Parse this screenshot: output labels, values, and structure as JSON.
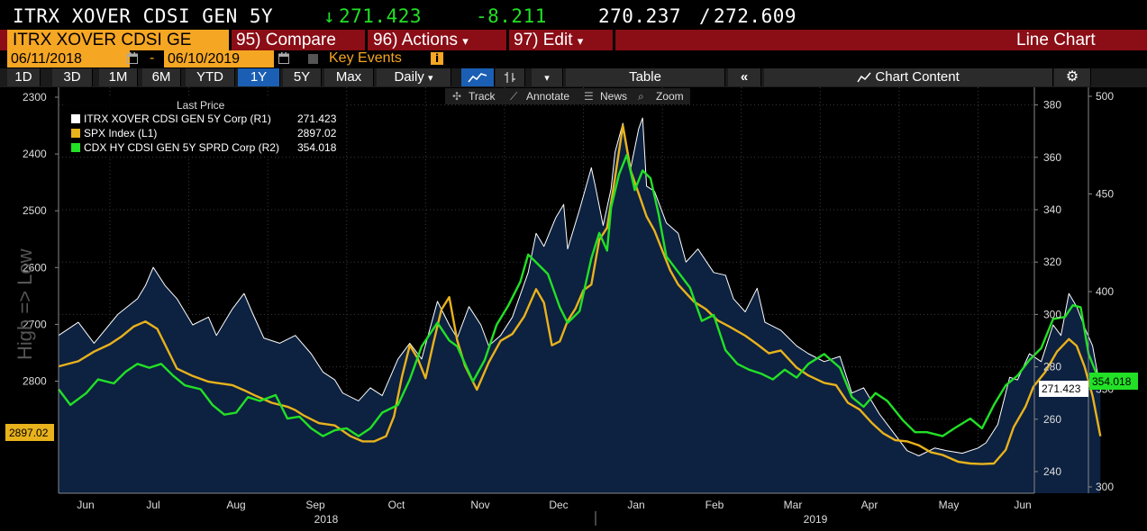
{
  "header": {
    "ticker": "ITRX XOVER CDSI GEN 5Y",
    "arrow": "↓",
    "last": "271.423",
    "change": "-8.211",
    "bid": "270.237",
    "slash": "/",
    "ask": "272.609"
  },
  "menubar": {
    "ticker_field": "ITRX XOVER CDSI GE",
    "compare_num": "95)",
    "compare_label": "Compare",
    "actions_num": "96)",
    "actions_label": "Actions",
    "edit_num": "97)",
    "edit_label": "Edit",
    "caret": "▾",
    "chart_title": "Line Chart"
  },
  "dates": {
    "start": "06/11/2018",
    "dash": "-",
    "end": "06/10/2019",
    "key_events": "Key Events"
  },
  "toolbar": {
    "periods": [
      "1D",
      "3D",
      "1M",
      "6M",
      "YTD",
      "1Y",
      "5Y",
      "Max"
    ],
    "active_period": "1Y",
    "frequency": "Daily",
    "table": "Table",
    "chart_content": "Chart Content",
    "track": "Track",
    "annotate": "Annotate",
    "news": "News",
    "zoom": "Zoom"
  },
  "colors": {
    "background": "#000000",
    "plot_bg": "#000000",
    "area_fill": "#0d2140",
    "itrx": "#ffffff",
    "spx": "#e8b21c",
    "cdx": "#22e026",
    "menubar": "#8b0d16",
    "accent": "#f5a623"
  },
  "chart_data": {
    "type": "line",
    "title": "",
    "legend_title": "Last Price",
    "legend_placement": "top-left",
    "left_axis_label": "High => Low",
    "x_months": [
      "Jun",
      "Jul",
      "Aug",
      "Sep",
      "Oct",
      "Nov",
      "Dec",
      "Jan",
      "Feb",
      "Mar",
      "Apr",
      "May",
      "Jun"
    ],
    "x_years": [
      "2018",
      "2019"
    ],
    "axes": {
      "L1": {
        "inverted": true,
        "ticks": [
          2300,
          2400,
          2500,
          2600,
          2700,
          2800
        ]
      },
      "R1": {
        "ticks": [
          240,
          260,
          280,
          300,
          320,
          340,
          360,
          380
        ]
      },
      "R2": {
        "ticks": [
          300,
          350,
          400,
          450,
          500
        ]
      }
    },
    "series": [
      {
        "name": "ITRX XOVER CDSI GEN 5Y Corp  (R1)",
        "last": "271.423",
        "axis": "R1",
        "color": "#ffffff",
        "area": true,
        "points": [
          [
            0,
            292
          ],
          [
            0.25,
            297
          ],
          [
            0.45,
            289
          ],
          [
            0.75,
            300
          ],
          [
            1.0,
            306
          ],
          [
            1.1,
            311
          ],
          [
            1.2,
            318
          ],
          [
            1.35,
            311
          ],
          [
            1.5,
            306
          ],
          [
            1.7,
            296
          ],
          [
            1.9,
            299
          ],
          [
            2.0,
            292
          ],
          [
            2.2,
            302
          ],
          [
            2.35,
            308
          ],
          [
            2.45,
            301
          ],
          [
            2.6,
            291
          ],
          [
            2.8,
            289
          ],
          [
            3.0,
            292
          ],
          [
            3.2,
            285
          ],
          [
            3.35,
            278
          ],
          [
            3.5,
            275
          ],
          [
            3.6,
            270
          ],
          [
            3.8,
            267
          ],
          [
            3.95,
            272
          ],
          [
            4.1,
            269
          ],
          [
            4.3,
            283
          ],
          [
            4.45,
            289
          ],
          [
            4.6,
            283
          ],
          [
            4.8,
            305
          ],
          [
            4.95,
            296
          ],
          [
            5.05,
            291
          ],
          [
            5.2,
            303
          ],
          [
            5.35,
            296
          ],
          [
            5.45,
            288
          ],
          [
            5.6,
            292
          ],
          [
            5.75,
            299
          ],
          [
            5.95,
            316
          ],
          [
            6.05,
            331
          ],
          [
            6.15,
            326
          ],
          [
            6.3,
            337
          ],
          [
            6.4,
            342
          ],
          [
            6.45,
            325
          ],
          [
            6.6,
            340
          ],
          [
            6.75,
            356
          ],
          [
            6.8,
            349
          ],
          [
            6.9,
            334
          ],
          [
            7.0,
            348
          ],
          [
            7.05,
            362
          ],
          [
            7.15,
            373
          ],
          [
            7.25,
            356
          ],
          [
            7.35,
            371
          ],
          [
            7.4,
            375
          ],
          [
            7.45,
            349
          ],
          [
            7.55,
            347
          ],
          [
            7.7,
            335
          ],
          [
            7.85,
            331
          ],
          [
            7.95,
            320
          ],
          [
            8.1,
            325
          ],
          [
            8.3,
            316
          ],
          [
            8.45,
            315
          ],
          [
            8.55,
            306
          ],
          [
            8.7,
            301
          ],
          [
            8.85,
            310
          ],
          [
            8.95,
            297
          ],
          [
            9.15,
            294
          ],
          [
            9.35,
            288
          ],
          [
            9.5,
            285
          ],
          [
            9.7,
            282
          ],
          [
            9.9,
            284
          ],
          [
            10.05,
            270
          ],
          [
            10.2,
            272
          ],
          [
            10.4,
            262
          ],
          [
            10.55,
            256
          ],
          [
            10.75,
            248
          ],
          [
            10.9,
            246
          ],
          [
            11.1,
            249
          ],
          [
            11.25,
            248
          ],
          [
            11.45,
            247
          ],
          [
            11.65,
            249
          ],
          [
            11.75,
            251
          ],
          [
            11.9,
            258
          ],
          [
            12.05,
            276
          ],
          [
            12.15,
            275
          ],
          [
            12.3,
            285
          ],
          [
            12.45,
            282
          ],
          [
            12.6,
            296
          ],
          [
            12.7,
            292
          ],
          [
            12.8,
            308
          ],
          [
            12.9,
            303
          ],
          [
            13.0,
            295
          ],
          [
            13.1,
            288
          ],
          [
            13.2,
            271.4
          ]
        ]
      },
      {
        "name": "SPX Index  (L1)",
        "last": "2897.02",
        "axis": "L1",
        "color": "#e8b21c",
        "points": [
          [
            0,
            2774
          ],
          [
            0.25,
            2765
          ],
          [
            0.45,
            2748
          ],
          [
            0.65,
            2735
          ],
          [
            0.8,
            2721
          ],
          [
            0.95,
            2704
          ],
          [
            1.1,
            2695
          ],
          [
            1.25,
            2708
          ],
          [
            1.35,
            2736
          ],
          [
            1.5,
            2778
          ],
          [
            1.7,
            2791
          ],
          [
            1.9,
            2801
          ],
          [
            2.0,
            2803
          ],
          [
            2.2,
            2807
          ],
          [
            2.35,
            2816
          ],
          [
            2.5,
            2826
          ],
          [
            2.7,
            2838
          ],
          [
            2.9,
            2845
          ],
          [
            3.0,
            2851
          ],
          [
            3.1,
            2860
          ],
          [
            3.3,
            2874
          ],
          [
            3.5,
            2878
          ],
          [
            3.7,
            2897
          ],
          [
            3.85,
            2906
          ],
          [
            4.0,
            2906
          ],
          [
            4.15,
            2897
          ],
          [
            4.25,
            2862
          ],
          [
            4.35,
            2792
          ],
          [
            4.45,
            2737
          ],
          [
            4.55,
            2760
          ],
          [
            4.65,
            2795
          ],
          [
            4.75,
            2732
          ],
          [
            4.85,
            2674
          ],
          [
            4.95,
            2652
          ],
          [
            5.05,
            2728
          ],
          [
            5.15,
            2773
          ],
          [
            5.3,
            2815
          ],
          [
            5.45,
            2767
          ],
          [
            5.6,
            2729
          ],
          [
            5.75,
            2717
          ],
          [
            5.9,
            2686
          ],
          [
            6.05,
            2638
          ],
          [
            6.15,
            2662
          ],
          [
            6.25,
            2737
          ],
          [
            6.35,
            2730
          ],
          [
            6.45,
            2694
          ],
          [
            6.55,
            2672
          ],
          [
            6.65,
            2640
          ],
          [
            6.75,
            2630
          ],
          [
            6.85,
            2551
          ],
          [
            6.95,
            2530
          ],
          [
            7.05,
            2442
          ],
          [
            7.15,
            2350
          ],
          [
            7.25,
            2430
          ],
          [
            7.35,
            2470
          ],
          [
            7.45,
            2510
          ],
          [
            7.55,
            2535
          ],
          [
            7.65,
            2570
          ],
          [
            7.75,
            2605
          ],
          [
            7.85,
            2630
          ],
          [
            7.95,
            2645
          ],
          [
            8.05,
            2660
          ],
          [
            8.2,
            2673
          ],
          [
            8.35,
            2693
          ],
          [
            8.5,
            2704
          ],
          [
            8.7,
            2720
          ],
          [
            8.85,
            2735
          ],
          [
            9.0,
            2751
          ],
          [
            9.15,
            2746
          ],
          [
            9.35,
            2776
          ],
          [
            9.5,
            2790
          ],
          [
            9.7,
            2803
          ],
          [
            9.85,
            2807
          ],
          [
            10.0,
            2838
          ],
          [
            10.15,
            2850
          ],
          [
            10.3,
            2873
          ],
          [
            10.45,
            2892
          ],
          [
            10.6,
            2904
          ],
          [
            10.75,
            2906
          ],
          [
            10.9,
            2913
          ],
          [
            11.05,
            2925
          ],
          [
            11.2,
            2930
          ],
          [
            11.4,
            2942
          ],
          [
            11.55,
            2945
          ],
          [
            11.7,
            2946
          ],
          [
            11.85,
            2945
          ],
          [
            12.0,
            2921
          ],
          [
            12.1,
            2881
          ],
          [
            12.25,
            2845
          ],
          [
            12.35,
            2810
          ],
          [
            12.5,
            2784
          ],
          [
            12.65,
            2748
          ],
          [
            12.8,
            2726
          ],
          [
            12.9,
            2738
          ],
          [
            13.0,
            2775
          ],
          [
            13.1,
            2826
          ],
          [
            13.2,
            2897.02
          ]
        ]
      },
      {
        "name": "CDX HY CDSI GEN 5Y SPRD Corp  (R2)",
        "last": "354.018",
        "axis": "R2",
        "color": "#22e026",
        "points": [
          [
            0,
            350
          ],
          [
            0.15,
            342
          ],
          [
            0.35,
            348
          ],
          [
            0.5,
            355
          ],
          [
            0.7,
            353
          ],
          [
            0.85,
            359
          ],
          [
            1.0,
            363
          ],
          [
            1.15,
            361
          ],
          [
            1.3,
            363
          ],
          [
            1.45,
            357
          ],
          [
            1.6,
            352
          ],
          [
            1.8,
            350
          ],
          [
            1.95,
            342
          ],
          [
            2.1,
            337
          ],
          [
            2.25,
            338
          ],
          [
            2.4,
            346
          ],
          [
            2.55,
            344
          ],
          [
            2.75,
            347
          ],
          [
            2.9,
            335
          ],
          [
            3.05,
            336
          ],
          [
            3.2,
            330
          ],
          [
            3.35,
            326
          ],
          [
            3.5,
            329
          ],
          [
            3.65,
            330
          ],
          [
            3.8,
            326
          ],
          [
            3.95,
            330
          ],
          [
            4.1,
            338
          ],
          [
            4.3,
            342
          ],
          [
            4.45,
            355
          ],
          [
            4.6,
            372
          ],
          [
            4.8,
            384
          ],
          [
            4.95,
            375
          ],
          [
            5.05,
            372
          ],
          [
            5.25,
            354
          ],
          [
            5.4,
            365
          ],
          [
            5.55,
            383
          ],
          [
            5.7,
            393
          ],
          [
            5.85,
            405
          ],
          [
            5.95,
            419
          ],
          [
            6.05,
            415
          ],
          [
            6.2,
            409
          ],
          [
            6.35,
            392
          ],
          [
            6.45,
            384
          ],
          [
            6.6,
            390
          ],
          [
            6.75,
            417
          ],
          [
            6.85,
            430
          ],
          [
            6.95,
            421
          ],
          [
            7.0,
            443
          ],
          [
            7.1,
            460
          ],
          [
            7.2,
            470
          ],
          [
            7.3,
            452
          ],
          [
            7.4,
            462
          ],
          [
            7.5,
            458
          ],
          [
            7.6,
            440
          ],
          [
            7.7,
            418
          ],
          [
            7.85,
            410
          ],
          [
            8.0,
            402
          ],
          [
            8.15,
            385
          ],
          [
            8.3,
            388
          ],
          [
            8.45,
            370
          ],
          [
            8.6,
            363
          ],
          [
            8.75,
            360
          ],
          [
            8.9,
            358
          ],
          [
            9.05,
            355
          ],
          [
            9.2,
            360
          ],
          [
            9.35,
            356
          ],
          [
            9.5,
            363
          ],
          [
            9.7,
            368
          ],
          [
            9.9,
            361
          ],
          [
            10.05,
            346
          ],
          [
            10.2,
            341
          ],
          [
            10.35,
            348
          ],
          [
            10.5,
            344
          ],
          [
            10.7,
            334
          ],
          [
            10.85,
            328
          ],
          [
            11.0,
            328
          ],
          [
            11.2,
            326
          ],
          [
            11.35,
            330
          ],
          [
            11.55,
            335
          ],
          [
            11.7,
            330
          ],
          [
            11.85,
            342
          ],
          [
            12.0,
            352
          ],
          [
            12.15,
            357
          ],
          [
            12.3,
            365
          ],
          [
            12.45,
            371
          ],
          [
            12.6,
            386
          ],
          [
            12.75,
            387
          ],
          [
            12.85,
            393
          ],
          [
            12.95,
            392
          ],
          [
            13.05,
            368
          ],
          [
            13.15,
            358
          ],
          [
            13.2,
            354.018
          ]
        ]
      }
    ]
  },
  "labels": {
    "left_last": "2897.02",
    "right_itrx_last": "271.423",
    "right_cdx_last": "354.018"
  }
}
